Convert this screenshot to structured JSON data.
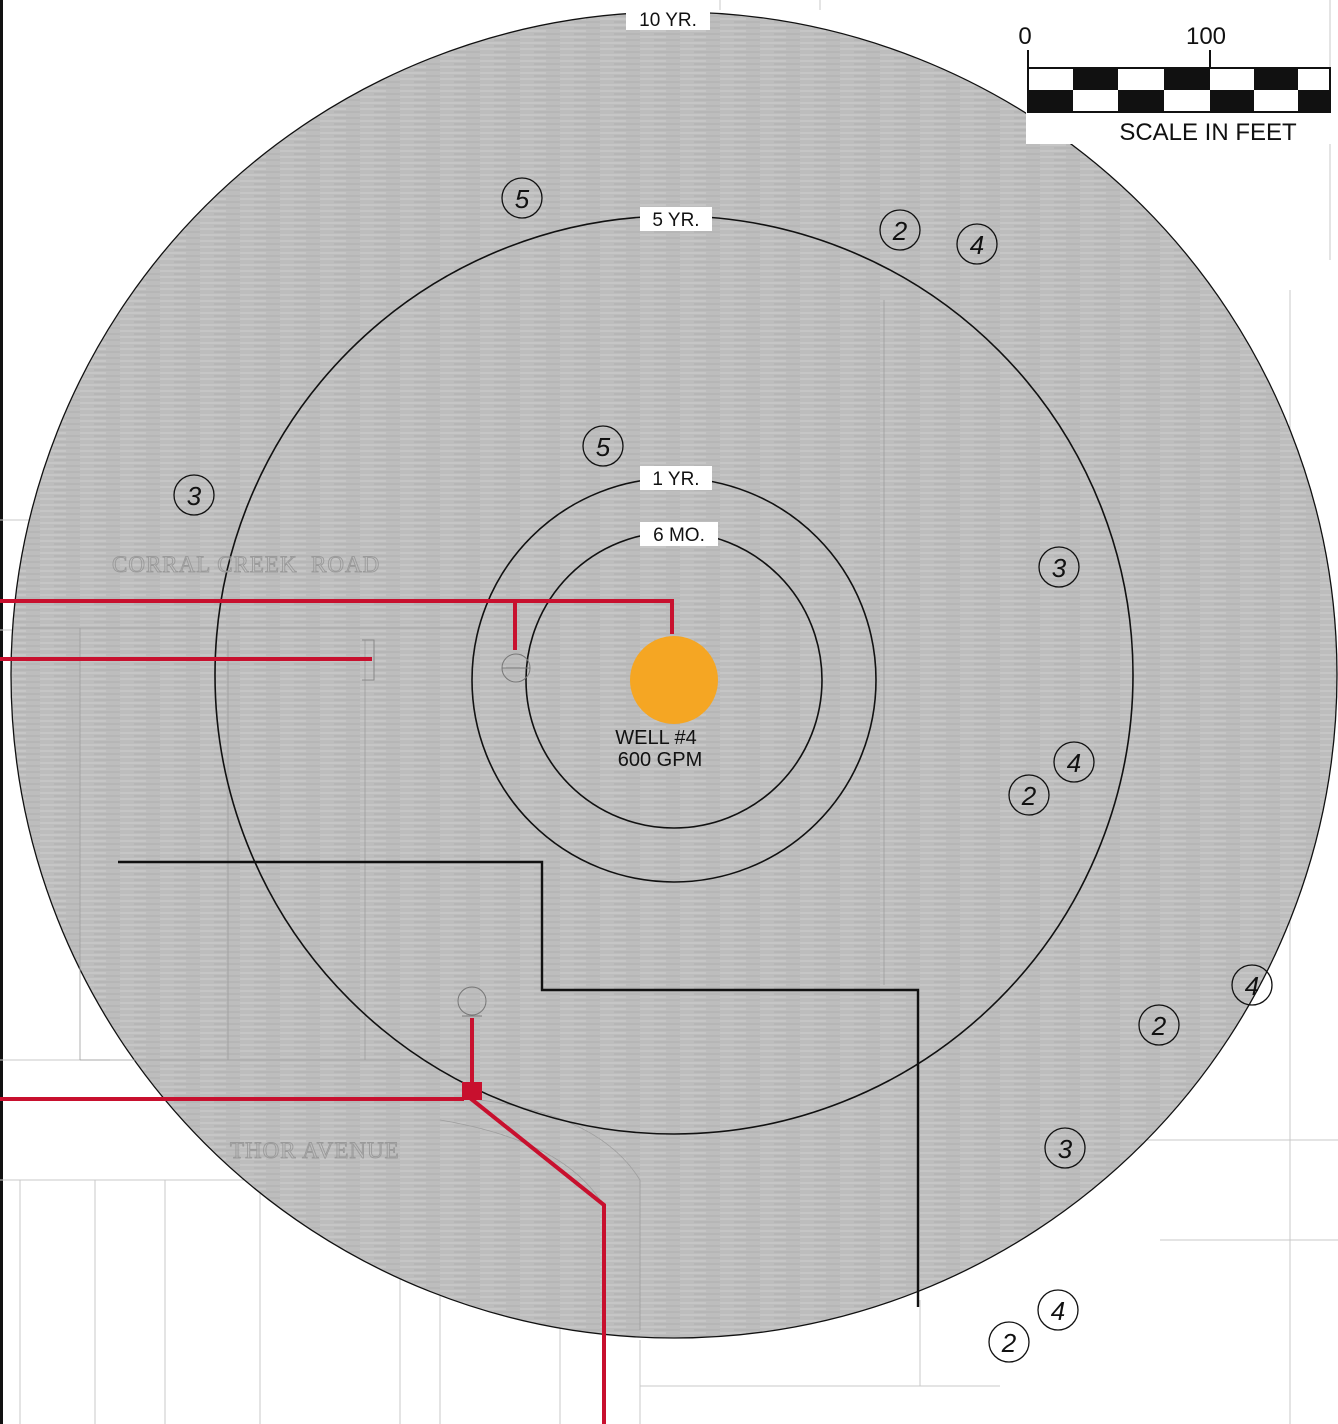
{
  "rings": {
    "outer_label": "10 YR.",
    "ring_5yr_label": "5 YR.",
    "ring_1yr_label": "1 YR.",
    "ring_6mo_label": "6 MO."
  },
  "well": {
    "name": "WELL #4",
    "rate": "600 GPM",
    "color": "#f5a623"
  },
  "scale_bar": {
    "tick_zero": "0",
    "tick_hundred": "100",
    "caption": "SCALE IN FEET"
  },
  "roads": {
    "corral_creek": "CORRAL CREEK  ROAD",
    "thor": "THOR AVENUE"
  },
  "colors": {
    "zone_fill": "#bdbdbd",
    "water_line": "#c8102e",
    "boundary_line": "#111111"
  },
  "markers": [
    {
      "id": "m1",
      "label": "5"
    },
    {
      "id": "m2",
      "label": "2"
    },
    {
      "id": "m3",
      "label": "4"
    },
    {
      "id": "m4",
      "label": "5"
    },
    {
      "id": "m5",
      "label": "3"
    },
    {
      "id": "m6",
      "label": "3"
    },
    {
      "id": "m7",
      "label": "4"
    },
    {
      "id": "m8",
      "label": "2"
    },
    {
      "id": "m9",
      "label": "4"
    },
    {
      "id": "m10",
      "label": "2"
    },
    {
      "id": "m11",
      "label": "3"
    },
    {
      "id": "m12",
      "label": "4"
    },
    {
      "id": "m13",
      "label": "2"
    }
  ]
}
